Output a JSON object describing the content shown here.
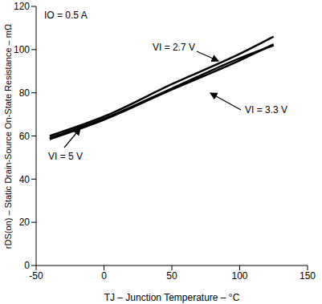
{
  "chart_data": {
    "type": "line",
    "title": "",
    "x_label": "TJ – Junction Temperature – °C",
    "y_label": "rDS(on) – Static Drain-Source On-State Resistance – mΩ",
    "annotations": [
      "IO = 0.5 A"
    ],
    "x": [
      -40,
      0,
      50,
      100,
      125
    ],
    "series": [
      {
        "name": "VI = 2.7 V",
        "color": "#000000",
        "values": [
          60,
          69,
          84,
          98,
          106
        ]
      },
      {
        "name": "VI = 3.3 V",
        "color": "#000000",
        "values": [
          59,
          68,
          82,
          96,
          102
        ]
      },
      {
        "name": "VI = 5 V",
        "color": "#000000",
        "values": [
          58.5,
          67.5,
          81.5,
          95,
          102.5
        ]
      }
    ],
    "xlim": [
      -50,
      150
    ],
    "xticks": [
      -50,
      0,
      50,
      100,
      150
    ],
    "ylim": [
      0,
      120
    ],
    "yticks": [
      0,
      20,
      40,
      60,
      80,
      100,
      120
    ],
    "grid": false
  }
}
